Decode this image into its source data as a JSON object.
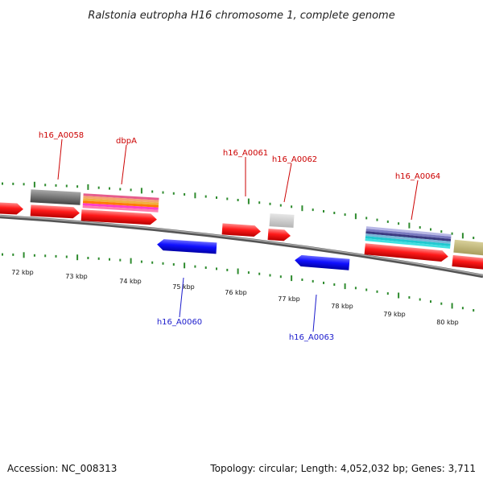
{
  "title": "Ralstonia eutropha H16 chromosome 1, complete genome",
  "accession": "Accession: NC_008313",
  "summary": "Topology: circular; Length: 4,052,032 bp; Genes: 3,711",
  "colors": {
    "forward_gene": "#ff0000",
    "reverse_gene": "#0000ff",
    "backbone": "#888888",
    "tick": "#2e8b2e",
    "label_forward": "#cc0000",
    "label_reverse": "#1a1acc"
  },
  "scale_labels": [
    "72 kbp",
    "73 kbp",
    "74 kbp",
    "75 kbp",
    "76 kbp",
    "77 kbp",
    "78 kbp",
    "79 kbp",
    "80 kbp"
  ],
  "gene_labels": [
    {
      "name": "h16_A0058",
      "strand": "forward"
    },
    {
      "name": "dbpA",
      "strand": "forward"
    },
    {
      "name": "h16_A0061",
      "strand": "forward"
    },
    {
      "name": "h16_A0062",
      "strand": "forward"
    },
    {
      "name": "h16_A0064",
      "strand": "forward"
    },
    {
      "name": "h16_A0060",
      "strand": "reverse"
    },
    {
      "name": "h16_A0063",
      "strand": "reverse"
    }
  ]
}
